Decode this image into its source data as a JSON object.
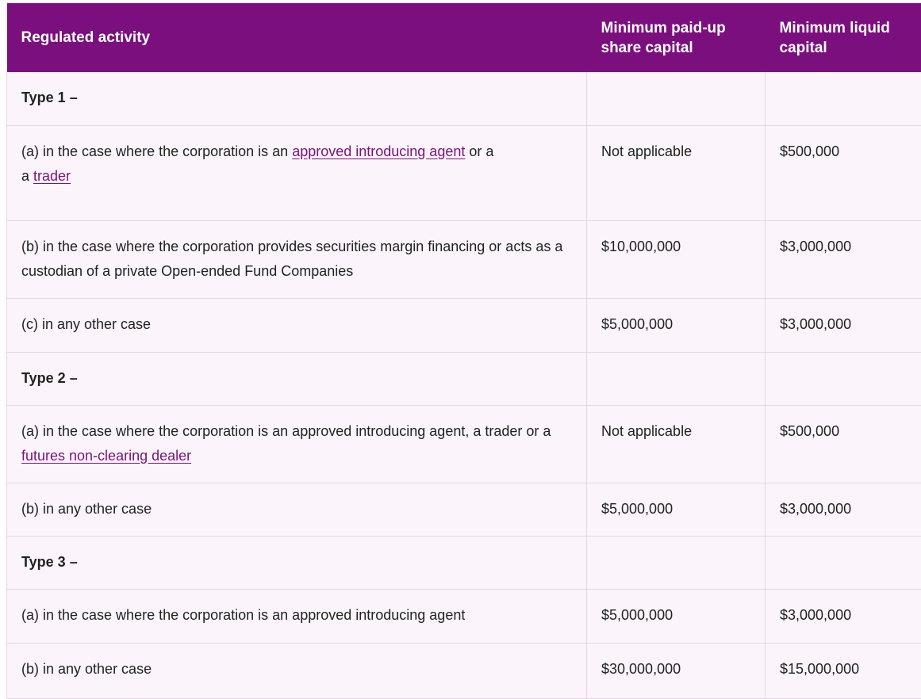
{
  "headers": {
    "activity": "Regulated activity",
    "share_capital": "Minimum paid-up share capital",
    "liquid_capital": "Minimum liquid capital"
  },
  "rows": [
    {
      "kind": "group",
      "activity": "Type 1 –",
      "share": "",
      "liquid": ""
    },
    {
      "kind": "item",
      "activity_parts": [
        "(a) in the case where the corporation is an ",
        "approved introducing agent",
        " or a ",
        "trader",
        ""
      ],
      "share": "Not applicable",
      "liquid": "$500,000"
    },
    {
      "kind": "item",
      "activity_parts": [
        "(b) in the case where the corporation provides securities margin financing or acts as a custodian of a private Open-ended Fund Companies"
      ],
      "share": "$10,000,000",
      "liquid": "$3,000,000"
    },
    {
      "kind": "item",
      "activity_parts": [
        "(c) in any other case"
      ],
      "share": "$5,000,000",
      "liquid": "$3,000,000"
    },
    {
      "kind": "group",
      "activity": "Type 2 –",
      "share": "",
      "liquid": ""
    },
    {
      "kind": "item",
      "activity_parts": [
        "(a) in the case where the corporation is an approved introducing agent, a trader or a ",
        "futures non-clearing dealer",
        ""
      ],
      "share": "Not applicable",
      "liquid": "$500,000"
    },
    {
      "kind": "item",
      "activity_parts": [
        "(b) in any other case"
      ],
      "share": "$5,000,000",
      "liquid": "$3,000,000"
    },
    {
      "kind": "group",
      "activity": "Type 3 –",
      "share": "",
      "liquid": ""
    },
    {
      "kind": "item",
      "activity_parts": [
        "(a) in the case where the corporation is an approved introducing agent"
      ],
      "share": "$5,000,000",
      "liquid": "$3,000,000"
    },
    {
      "kind": "item",
      "activity_parts": [
        "(b) in any other case"
      ],
      "share": "$30,000,000",
      "liquid": "$15,000,000"
    }
  ],
  "colors": {
    "header_bg": "#7b0f7e",
    "row_bg": "#fbf5fb",
    "link": "#7b0f7e"
  }
}
